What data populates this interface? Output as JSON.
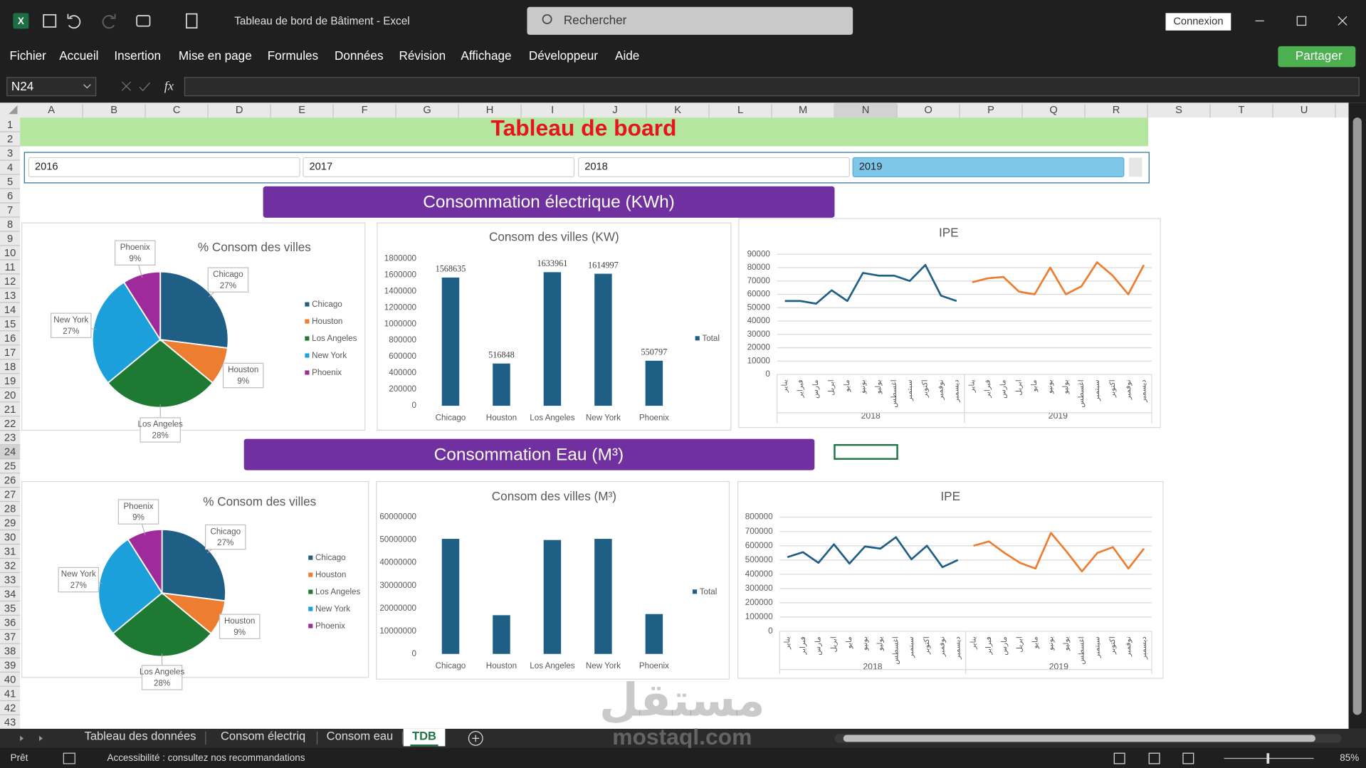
{
  "window": {
    "title": "Tableau de bord de Bâtiment  -  Excel",
    "search": "Rechercher",
    "sign_in": "Connexion"
  },
  "menu": [
    "Fichier",
    "Accueil",
    "Insertion",
    "Mise en page",
    "Formules",
    "Données",
    "Révision",
    "Affichage",
    "Développeur",
    "Aide"
  ],
  "share": "Partager",
  "name_box": "N24",
  "formula_label": "fx",
  "columns": [
    "A",
    "B",
    "C",
    "D",
    "E",
    "F",
    "G",
    "H",
    "I",
    "J",
    "K",
    "L",
    "M",
    "N",
    "O",
    "P",
    "Q",
    "R",
    "S",
    "T",
    "U"
  ],
  "rows": [
    1,
    2,
    3,
    4,
    5,
    6,
    7,
    8,
    9,
    10,
    11,
    12,
    13,
    14,
    15,
    16,
    17,
    18,
    19,
    20,
    21,
    22,
    23,
    24,
    25,
    26,
    27,
    28,
    29,
    30,
    31,
    32,
    33,
    34,
    35,
    36,
    37,
    38,
    39,
    40,
    41,
    42,
    43
  ],
  "sheet": {
    "title": "Tableau de board",
    "slicer": [
      "2016",
      "2017",
      "2018",
      "2019"
    ],
    "slicer_selected": 3,
    "sections": [
      "Consommation électrique (KWh)",
      "Consommation Eau (M³)"
    ]
  },
  "chart_data": [
    {
      "type": "pie",
      "title": "% Consom des villes",
      "categories": [
        "Chicago",
        "Houston",
        "Los Angeles",
        "New York",
        "Phoenix"
      ],
      "values": [
        27,
        9,
        28,
        27,
        9
      ],
      "value_labels": [
        "27%",
        "9%",
        "28%",
        "27%",
        "9%"
      ],
      "colors": [
        "#1f5f86",
        "#ed7d31",
        "#1e7a33",
        "#1ca0dc",
        "#9e2a9c"
      ],
      "legend": "right"
    },
    {
      "type": "bar",
      "title": "Consom des villes (KW)",
      "categories": [
        "Chicago",
        "Houston",
        "Los Angeles",
        "New York",
        "Phoenix"
      ],
      "series": [
        {
          "name": "Total",
          "color": "#1f5f86",
          "values": [
            1568635,
            516848,
            1633961,
            1614997,
            550797
          ]
        }
      ],
      "ylim": [
        0,
        1800000
      ],
      "yticks": [
        0,
        200000,
        400000,
        600000,
        800000,
        1000000,
        1200000,
        1400000,
        1600000,
        1800000
      ],
      "data_labels": true,
      "grid": false,
      "legend": "right"
    },
    {
      "type": "line",
      "title": "IPE",
      "categories": [
        "يناير",
        "فبراير",
        "مارس",
        "ابريل",
        "مايو",
        "يونيو",
        "يوليو",
        "اغسطس",
        "سبتمبر",
        "اكتوبر",
        "نوفمبر",
        "ديسمبر",
        "يناير",
        "فبراير",
        "مارس",
        "ابريل",
        "مايو",
        "يونيو",
        "يوليو",
        "اغسطس",
        "سبتمبر",
        "اكتوبر",
        "نوفمبر",
        "ديسمبر"
      ],
      "group_labels": [
        "2018",
        "2019"
      ],
      "series": [
        {
          "color": "#1f5f86",
          "values": [
            55000,
            55000,
            53000,
            63000,
            55000,
            76000,
            74000,
            74000,
            70000,
            82000,
            59000,
            55000,
            null,
            null,
            null,
            null,
            null,
            null,
            null,
            null,
            null,
            null,
            null,
            null
          ]
        },
        {
          "color": "#ed7d31",
          "values": [
            null,
            null,
            null,
            null,
            null,
            null,
            null,
            null,
            null,
            null,
            null,
            null,
            69000,
            72000,
            73000,
            62000,
            60000,
            80000,
            60000,
            66000,
            84000,
            74000,
            60000,
            82000
          ]
        }
      ],
      "ylim": [
        0,
        90000
      ],
      "yticks": [
        0,
        10000,
        20000,
        30000,
        40000,
        50000,
        60000,
        70000,
        80000,
        90000
      ],
      "grid": true
    },
    {
      "type": "pie",
      "title": "% Consom des villes",
      "categories": [
        "Chicago",
        "Houston",
        "Los Angeles",
        "New York",
        "Phoenix"
      ],
      "values": [
        27,
        9,
        28,
        27,
        9
      ],
      "value_labels": [
        "27%",
        "9%",
        "28%",
        "27%",
        "9%"
      ],
      "colors": [
        "#1f5f86",
        "#ed7d31",
        "#1e7a33",
        "#1ca0dc",
        "#9e2a9c"
      ],
      "legend": "right"
    },
    {
      "type": "bar",
      "title": "Consom des villes (M³)",
      "categories": [
        "Chicago",
        "Houston",
        "Los Angeles",
        "New York",
        "Phoenix"
      ],
      "series": [
        {
          "name": "Total",
          "color": "#1f5f86",
          "values": [
            50500000,
            17000000,
            50000000,
            50500000,
            17500000
          ]
        }
      ],
      "ylim": [
        0,
        60000000
      ],
      "yticks": [
        0,
        10000000,
        20000000,
        30000000,
        40000000,
        50000000,
        60000000
      ],
      "data_labels": false,
      "grid": false,
      "legend": "right"
    },
    {
      "type": "line",
      "title": "IPE",
      "categories": [
        "يناير",
        "فبراير",
        "مارس",
        "ابريل",
        "مايو",
        "يونيو",
        "يوليو",
        "اغسطس",
        "سبتمبر",
        "اكتوبر",
        "نوفمبر",
        "ديسمبر",
        "يناير",
        "فبراير",
        "مارس",
        "ابريل",
        "مايو",
        "يونيو",
        "يوليو",
        "اغسطس",
        "سبتمبر",
        "اكتوبر",
        "نوفمبر",
        "ديسمبر"
      ],
      "group_labels": [
        "2018",
        "2019"
      ],
      "series": [
        {
          "color": "#1f5f86",
          "values": [
            520000,
            555000,
            480000,
            610000,
            475000,
            595000,
            580000,
            660000,
            505000,
            600000,
            450000,
            500000,
            null,
            null,
            null,
            null,
            null,
            null,
            null,
            null,
            null,
            null,
            null,
            null
          ]
        },
        {
          "color": "#ed7d31",
          "values": [
            null,
            null,
            null,
            null,
            null,
            null,
            null,
            null,
            null,
            null,
            null,
            null,
            600000,
            630000,
            550000,
            480000,
            440000,
            690000,
            560000,
            420000,
            550000,
            590000,
            440000,
            580000
          ]
        }
      ],
      "ylim": [
        0,
        800000
      ],
      "yticks": [
        0,
        100000,
        200000,
        300000,
        400000,
        500000,
        600000,
        700000,
        800000
      ],
      "grid": true
    }
  ],
  "tabs": [
    "Tableau des données",
    "Consom électriq",
    "Consom eau",
    "TDB"
  ],
  "active_tab": 3,
  "status": {
    "ready": "Prêt",
    "accessibility": "Accessibilité : consultez nos recommandations",
    "zoom": "85%"
  },
  "watermark": {
    "arabic": "مستقل",
    "latin": "mostaql.com"
  }
}
